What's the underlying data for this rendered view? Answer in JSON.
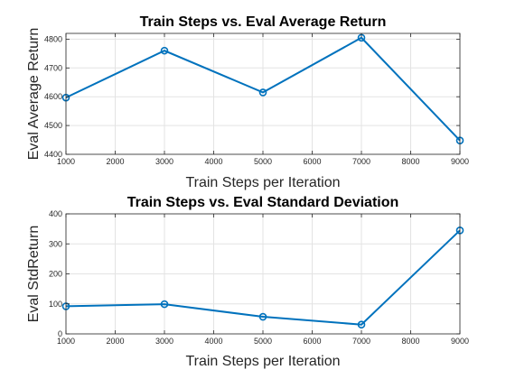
{
  "chart_data": [
    {
      "type": "line",
      "title": "Train Steps vs. Eval Average Return",
      "xlabel": "Train Steps per Iteration",
      "ylabel": "Eval Average Return",
      "x": [
        1000,
        3000,
        5000,
        7000,
        9000
      ],
      "series": [
        {
          "values": [
            4597,
            4760,
            4615,
            4805,
            4448
          ],
          "color": "#0072bd",
          "marker": "circle"
        }
      ],
      "xlim": [
        1000,
        9000
      ],
      "ylim": [
        4400,
        4820
      ],
      "xticks": [
        "1000",
        "2000",
        "3000",
        "4000",
        "5000",
        "6000",
        "7000",
        "8000",
        "9000"
      ],
      "yticks": [
        "4400",
        "4500",
        "4600",
        "4700",
        "4800"
      ],
      "grid": true,
      "legend": "none"
    },
    {
      "type": "line",
      "title": "Train Steps vs. Eval Standard Deviation",
      "xlabel": "Train Steps per Iteration",
      "ylabel": "Eval StdReturn",
      "x": [
        1000,
        3000,
        5000,
        7000,
        9000
      ],
      "series": [
        {
          "values": [
            92,
            99,
            57,
            31,
            345
          ],
          "color": "#0072bd",
          "marker": "circle"
        }
      ],
      "xlim": [
        1000,
        9000
      ],
      "ylim": [
        0,
        400
      ],
      "xticks": [
        "1000",
        "2000",
        "3000",
        "4000",
        "5000",
        "6000",
        "7000",
        "8000",
        "9000"
      ],
      "yticks": [
        "0",
        "100",
        "200",
        "300",
        "400"
      ],
      "grid": true,
      "legend": "none"
    }
  ]
}
